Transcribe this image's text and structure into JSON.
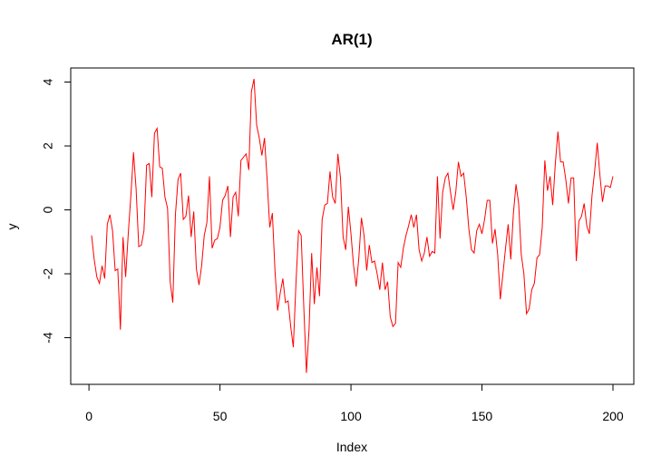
{
  "chart_data": {
    "type": "line",
    "title": "AR(1)",
    "xlabel": "Index",
    "ylabel": "y",
    "xlim": [
      -6.96,
      207.96
    ],
    "ylim": [
      -5.46,
      4.44
    ],
    "x_ticks": [
      0,
      50,
      100,
      150,
      200
    ],
    "x_tick_labels": [
      "0",
      "50",
      "100",
      "150",
      "200"
    ],
    "y_ticks": [
      -4,
      -2,
      0,
      2,
      4
    ],
    "y_tick_labels": [
      "-4",
      "-2",
      "0",
      "2",
      "4"
    ],
    "grid": false,
    "legend": "none",
    "series": [
      {
        "color": "#ff0000",
        "x_start": 1,
        "x_step": 1,
        "y": [
          -0.8,
          -1.55,
          -2.1,
          -2.3,
          -1.75,
          -2.15,
          -0.45,
          -0.15,
          -0.65,
          -1.9,
          -1.85,
          -3.75,
          -0.85,
          -2.1,
          -0.75,
          0.45,
          1.8,
          0.65,
          -1.15,
          -1.1,
          -0.65,
          1.4,
          1.45,
          0.4,
          2.4,
          2.55,
          1.35,
          1.3,
          0.4,
          0.05,
          -2.25,
          -2.9,
          -0.15,
          0.95,
          1.15,
          -0.3,
          -0.2,
          0.45,
          -0.85,
          -0.05,
          -1.85,
          -2.35,
          -1.75,
          -0.8,
          -0.4,
          1.05,
          -1.2,
          -0.95,
          -0.9,
          -0.55,
          0.3,
          0.45,
          0.75,
          -0.85,
          0.4,
          0.55,
          -0.2,
          1.55,
          1.65,
          1.75,
          1.25,
          3.7,
          4.1,
          2.65,
          2.25,
          1.7,
          2.25,
          0.95,
          -0.55,
          -0.1,
          -1.9,
          -3.15,
          -2.6,
          -2.15,
          -2.9,
          -2.85,
          -3.65,
          -4.3,
          -2.3,
          -0.65,
          -0.8,
          -3.05,
          -5.1,
          -3.75,
          -1.35,
          -2.95,
          -1.8,
          -2.7,
          -0.3,
          0.15,
          0.2,
          1.2,
          0.4,
          0.2,
          1.75,
          1.0,
          -0.85,
          -1.25,
          0.1,
          -0.75,
          -1.75,
          -2.4,
          -1.5,
          -0.25,
          -0.8,
          -1.9,
          -1.1,
          -1.65,
          -1.6,
          -2.0,
          -2.5,
          -1.65,
          -2.5,
          -2.25,
          -3.35,
          -3.65,
          -3.55,
          -1.65,
          -1.8,
          -1.2,
          -0.8,
          -0.5,
          -0.15,
          -0.55,
          -0.15,
          -1.25,
          -1.6,
          -1.35,
          -0.85,
          -1.45,
          -1.3,
          -1.35,
          1.05,
          -0.9,
          0.55,
          1.0,
          1.15,
          0.55,
          0.0,
          0.55,
          1.5,
          1.05,
          1.15,
          0.4,
          -0.6,
          -1.25,
          -1.35,
          -0.65,
          -0.45,
          -0.75,
          -0.3,
          0.3,
          0.3,
          -1.05,
          -0.6,
          -1.4,
          -2.8,
          -2.0,
          -1.2,
          -0.45,
          -1.55,
          -0.1,
          0.8,
          0.2,
          -1.4,
          -2.0,
          -3.25,
          -3.1,
          -2.5,
          -2.3,
          -1.5,
          -1.4,
          -0.55,
          1.55,
          0.6,
          1.05,
          0.15,
          1.45,
          2.45,
          1.5,
          1.5,
          0.95,
          0.2,
          1.0,
          1.0,
          -1.6,
          -0.35,
          -0.2,
          0.2,
          -0.5,
          -0.75,
          0.45,
          1.2,
          2.1,
          1.1,
          0.25,
          0.75,
          0.75,
          0.7,
          1.05
        ]
      }
    ]
  }
}
